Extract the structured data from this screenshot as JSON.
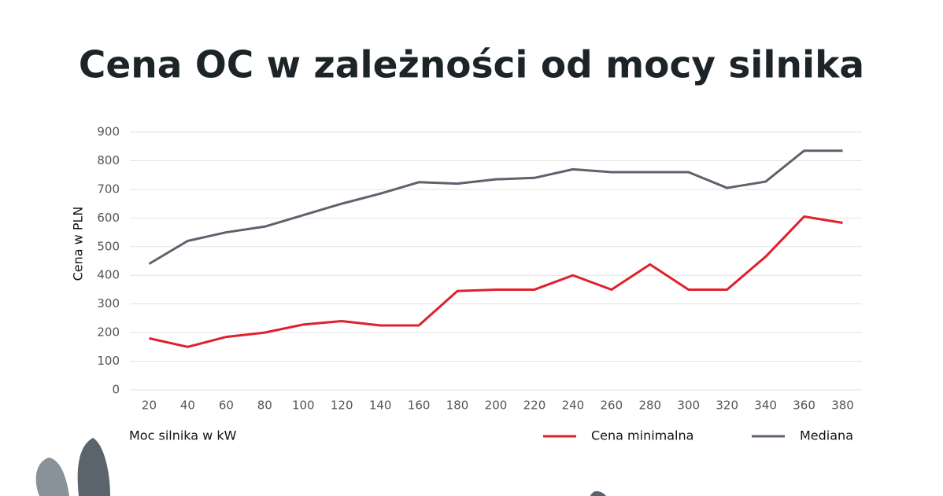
{
  "chart_data": {
    "type": "line",
    "title": "Cena OC w zależności od mocy silnika",
    "x_label": "Moc silnika w kW",
    "y_label": "Cena w PLN",
    "x": [
      20,
      40,
      60,
      80,
      100,
      120,
      140,
      160,
      180,
      200,
      220,
      240,
      260,
      280,
      300,
      320,
      340,
      360,
      380
    ],
    "series": [
      {
        "name": "Cena minimalna",
        "color": "#e0202b",
        "values": [
          180,
          150,
          185,
          200,
          228,
          240,
          225,
          225,
          345,
          350,
          350,
          400,
          350,
          438,
          350,
          350,
          465,
          605,
          583
        ]
      },
      {
        "name": "Mediana",
        "color": "#5b636c",
        "values": [
          440,
          520,
          550,
          570,
          610,
          650,
          685,
          725,
          720,
          735,
          740,
          770,
          760,
          760,
          760,
          705,
          727,
          835,
          835
        ]
      }
    ],
    "xlim": [
      10,
      390
    ],
    "xticks": [
      20,
      40,
      60,
      80,
      100,
      120,
      140,
      160,
      180,
      200,
      220,
      240,
      260,
      280,
      300,
      320,
      340,
      360,
      380
    ],
    "ylim": [
      0,
      900
    ],
    "yticks": [
      0,
      100,
      200,
      300,
      400,
      500,
      600,
      700,
      800,
      900
    ],
    "grid": true,
    "legend": "bottom-right"
  }
}
